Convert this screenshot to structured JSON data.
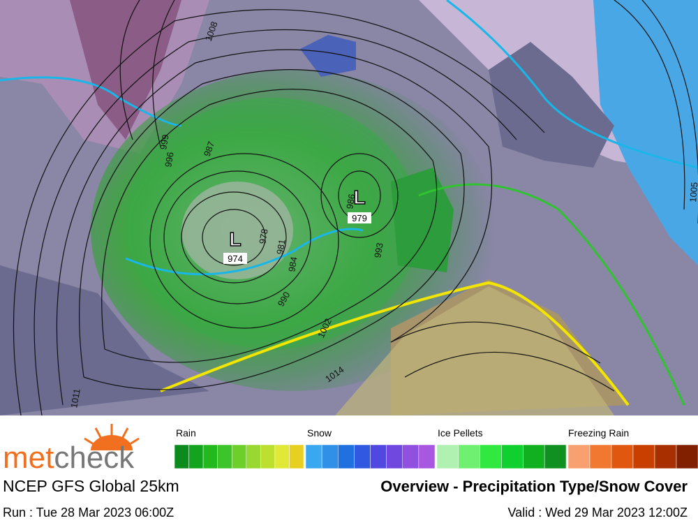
{
  "map": {
    "lows": [
      "L",
      "L"
    ],
    "low_pressures": [
      "974",
      "979"
    ],
    "isobar_labels": [
      "1008",
      "999",
      "996",
      "987",
      "978",
      "981",
      "984",
      "990",
      "993",
      "1002",
      "1014",
      "1011",
      "1005",
      "986"
    ]
  },
  "legend": {
    "rain": "Rain",
    "snow": "Snow",
    "ice_pellets": "Ice Pellets",
    "freezing_rain": "Freezing Rain"
  },
  "footer": {
    "logo_met": "met",
    "logo_check": "check",
    "model": "NCEP GFS Global 25km",
    "title": "Overview - Precipitation Type/Snow Cover",
    "run": "Run : Tue 28 Mar 2023 06:00Z",
    "valid": "Valid : Wed 29 Mar 2023 12:00Z"
  }
}
